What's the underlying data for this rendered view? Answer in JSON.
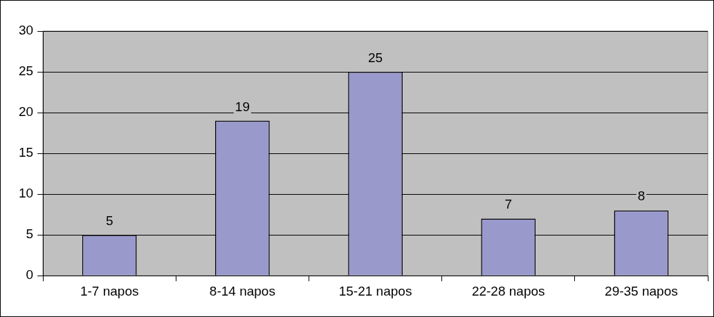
{
  "chart_data": {
    "type": "bar",
    "categories": [
      "1-7 napos",
      "8-14 napos",
      "15-21 napos",
      "22-28 napos",
      "29-35 napos"
    ],
    "values": [
      5,
      19,
      25,
      7,
      8
    ],
    "color": "#9999cc",
    "ylim": [
      0,
      30
    ],
    "yticks": [
      0,
      5,
      10,
      15,
      20,
      25,
      30
    ],
    "grid": "y",
    "legend": false,
    "data_labels": true
  }
}
